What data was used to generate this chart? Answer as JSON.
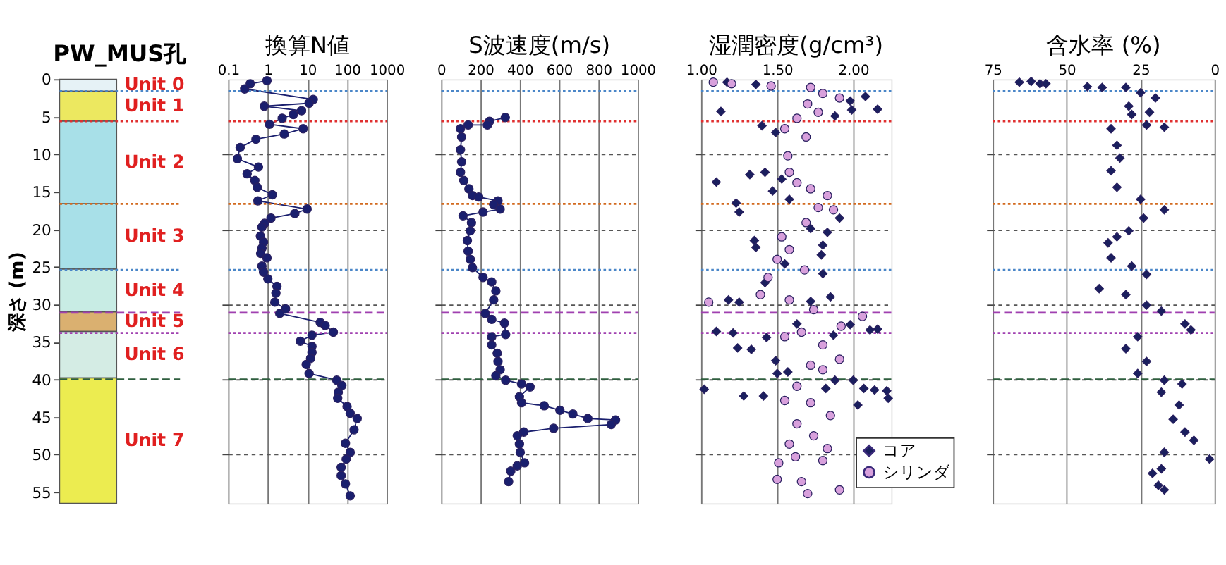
{
  "chart_data": [
    {
      "type": "bar",
      "stacked": true,
      "title": "PW_MUS孔",
      "ylabel": "深さ (m)",
      "ylim": [
        56.5,
        0
      ],
      "yticks": [
        0,
        5,
        10,
        15,
        20,
        25,
        30,
        35,
        40,
        45,
        50,
        55
      ],
      "tick_labels": "y",
      "categories": [
        null
      ],
      "series": [
        {
          "name": "Unit 0",
          "color": "#e6f2f6",
          "values": [
            1.6
          ]
        },
        {
          "name": "Unit 1",
          "color": "#ece860",
          "values": [
            4.0
          ]
        },
        {
          "name": "Unit 2",
          "color": "#a8e0e8",
          "values": [
            11.0
          ]
        },
        {
          "name": "Unit 3",
          "color": "#a8e0e8",
          "values": [
            8.7
          ]
        },
        {
          "name": "Unit 4",
          "color": "#c8ece4",
          "values": [
            5.7
          ]
        },
        {
          "name": "Unit 5",
          "color": "#dab070",
          "values": [
            2.6
          ]
        },
        {
          "name": "Unit 6",
          "color": "#d4ece4",
          "values": [
            6.2
          ]
        },
        {
          "name": "Unit 7",
          "color": "#ecec50",
          "values": [
            16.7
          ]
        }
      ],
      "ref_lines": [
        {
          "axis": "y",
          "value": 1.6,
          "color": "#4a86c8",
          "line_style": "dotted"
        },
        {
          "axis": "y",
          "value": 5.6,
          "color": "#e03030",
          "line_style": "dotted"
        },
        {
          "axis": "y",
          "value": 16.6,
          "color": "#d2691e",
          "line_style": "dotted"
        },
        {
          "axis": "y",
          "value": 25.4,
          "color": "#4a86c8",
          "line_style": "dotted"
        },
        {
          "axis": "y",
          "value": 31.1,
          "color": "#a040b0",
          "line_style": "dashed"
        },
        {
          "axis": "y",
          "value": 33.8,
          "color": "#a040b0",
          "line_style": "dotted"
        },
        {
          "axis": "y",
          "value": 40.0,
          "color": "#2e5e3e",
          "line_style": "dashed"
        }
      ]
    },
    {
      "type": "line",
      "title": "換算N値",
      "log": "x",
      "xlim": [
        0.1,
        1000
      ],
      "xticks": [
        0.1,
        1,
        10,
        100,
        1000
      ],
      "ylim": [
        56.5,
        0
      ],
      "yticks": [
        10,
        20,
        30,
        40,
        50
      ],
      "tick_labels": "x",
      "grid": true,
      "marker": "circle",
      "line_style": "solid",
      "series": [
        {
          "color": "#1a1f6e",
          "x": [
            0.95,
            0.36,
            0.26,
            14,
            11,
            0.81,
            7.1,
            4.4,
            2.3,
            1.1,
            7.8,
            2.6,
            0.5,
            0.2,
            0.17,
            0.58,
            0.3,
            0.47,
            0.54,
            1.3,
            0.56,
            9.8,
            4.8,
            1.2,
            0.83,
            0.71,
            0.65,
            0.78,
            0.71,
            0.66,
            0.95,
            0.71,
            0.78,
            1.0,
            1.7,
            1.6,
            1.5,
            2.8,
            2.0,
            21,
            28,
            45,
            13,
            6.6,
            13,
            13,
            12,
            9.3,
            11,
            55,
            74,
            60,
            58,
            100,
            120,
            180,
            150,
            91,
            120,
            95,
            71,
            71,
            91,
            120
          ],
          "values": [
            0.2,
            0.6,
            1.3,
            2.7,
            3.2,
            3.6,
            4.2,
            4.7,
            5.2,
            6.0,
            6.6,
            7.3,
            8.0,
            9.1,
            10.6,
            11.7,
            12.6,
            13.5,
            14.4,
            15.4,
            16.2,
            17.3,
            17.9,
            18.5,
            19.2,
            19.7,
            20.9,
            21.7,
            22.5,
            23.2,
            23.8,
            24.9,
            25.7,
            26.6,
            27.6,
            28.5,
            29.7,
            30.6,
            31.2,
            32.4,
            32.8,
            33.7,
            34.1,
            34.9,
            35.6,
            36.4,
            37.2,
            38.0,
            39.2,
            40.1,
            40.8,
            41.7,
            42.5,
            43.6,
            44.5,
            45.2,
            46.7,
            48.5,
            49.7,
            50.6,
            51.7,
            52.8,
            53.9,
            55.5
          ]
        }
      ],
      "ref_lines": [
        {
          "axis": "y",
          "value": 1.6,
          "color": "#4a86c8",
          "line_style": "dotted"
        },
        {
          "axis": "y",
          "value": 5.6,
          "color": "#e03030",
          "line_style": "dotted"
        },
        {
          "axis": "y",
          "value": 16.6,
          "color": "#d2691e",
          "line_style": "dotted"
        },
        {
          "axis": "y",
          "value": 25.4,
          "color": "#4a86c8",
          "line_style": "dotted"
        },
        {
          "axis": "y",
          "value": 31.1,
          "color": "#a040b0",
          "line_style": "dashed"
        },
        {
          "axis": "y",
          "value": 33.8,
          "color": "#a040b0",
          "line_style": "dotted"
        },
        {
          "axis": "y",
          "value": 40.0,
          "color": "#2e5e3e",
          "line_style": "dashed"
        }
      ]
    },
    {
      "type": "line",
      "title": "S波速度(m/s)",
      "xlim": [
        0,
        1000
      ],
      "xticks": [
        0,
        200,
        400,
        600,
        800,
        1000
      ],
      "ylim": [
        56.5,
        0
      ],
      "yticks": [
        10,
        20,
        30,
        40,
        50
      ],
      "tick_labels": "x",
      "grid": true,
      "marker": "circle",
      "line_style": "solid",
      "series": [
        {
          "color": "#1a1f6e",
          "x": [
            326,
            246,
            235,
            137,
            98,
            104,
            98,
            104,
            98,
            115,
            141,
            159,
            191,
            289,
            267,
            300,
            213,
            111,
            154,
            148,
            133,
            137,
            148,
            159,
            213,
            257,
            278,
            267,
            224,
            257,
            322,
            328,
            257,
            257,
            285,
            289,
            300,
            278,
            328,
            409,
            452,
            398,
            409,
            524,
            604,
            670,
            746,
            887,
            865,
            572,
            420,
            387,
            398,
            402,
            424,
            387,
            354,
            343
          ],
          "values": [
            5.1,
            5.6,
            6.1,
            6.1,
            6.6,
            7.7,
            9.4,
            11.0,
            12.4,
            13.5,
            14.6,
            15.5,
            15.7,
            16.2,
            16.7,
            17.3,
            17.7,
            18.2,
            19.1,
            20.2,
            21.5,
            22.9,
            24.0,
            25.1,
            26.4,
            27.0,
            28.2,
            29.4,
            31.2,
            32.0,
            32.5,
            34.0,
            34.3,
            35.4,
            36.5,
            37.6,
            38.7,
            39.5,
            40.1,
            40.6,
            41.0,
            42.3,
            43.1,
            43.5,
            44.1,
            44.6,
            45.2,
            45.4,
            46.0,
            46.5,
            47.0,
            47.5,
            48.6,
            49.7,
            51.1,
            51.5,
            52.2,
            53.6
          ]
        }
      ],
      "ref_lines": [
        {
          "axis": "y",
          "value": 1.6,
          "color": "#4a86c8",
          "line_style": "dotted"
        },
        {
          "axis": "y",
          "value": 5.6,
          "color": "#e03030",
          "line_style": "dotted"
        },
        {
          "axis": "y",
          "value": 16.6,
          "color": "#d2691e",
          "line_style": "dotted"
        },
        {
          "axis": "y",
          "value": 25.4,
          "color": "#4a86c8",
          "line_style": "dotted"
        },
        {
          "axis": "y",
          "value": 31.1,
          "color": "#a040b0",
          "line_style": "dashed"
        },
        {
          "axis": "y",
          "value": 33.8,
          "color": "#a040b0",
          "line_style": "dotted"
        },
        {
          "axis": "y",
          "value": 40.0,
          "color": "#2e5e3e",
          "line_style": "dashed"
        }
      ]
    },
    {
      "type": "scatter",
      "title": "湿潤密度(g/cm³)",
      "xlim": [
        1.0,
        2.25
      ],
      "xticks": [
        {
          "value": 1.0,
          "label": "1.00"
        },
        {
          "value": 1.5,
          "label": "1.50"
        },
        {
          "value": 2.0,
          "label": "2.00"
        }
      ],
      "ylim": [
        56.5,
        0
      ],
      "yticks": [
        10,
        20,
        30,
        40,
        50
      ],
      "tick_labels": "x",
      "grid": true,
      "legend": "bottom right",
      "series": [
        {
          "name": "コア",
          "color": "#1a1f5e",
          "marker": "diamond",
          "x": [
            1.17,
            1.36,
            1.13,
            1.4,
            1.49,
            1.98,
            2.08,
            2.16,
            1.99,
            1.88,
            1.1,
            1.32,
            1.42,
            1.53,
            1.47,
            1.23,
            1.25,
            1.58,
            1.91,
            1.35,
            1.36,
            1.8,
            1.79,
            1.55,
            1.8,
            1.42,
            1.18,
            1.25,
            1.85,
            1.72,
            1.1,
            1.21,
            1.43,
            1.98,
            2.11,
            2.16,
            1.87,
            1.24,
            1.33,
            1.49,
            1.57,
            1.5,
            2.0,
            2.07,
            2.14,
            2.22,
            2.23,
            2.03,
            1.02,
            1.28,
            1.41,
            1.82,
            1.88,
            1.63,
            1.72,
            1.83
          ],
          "values": [
            0.4,
            0.7,
            4.3,
            6.2,
            7.1,
            2.9,
            2.3,
            4.0,
            4.1,
            4.9,
            13.7,
            12.7,
            12.4,
            13.3,
            14.9,
            16.5,
            17.7,
            16.0,
            18.5,
            21.5,
            22.4,
            22.1,
            23.4,
            24.6,
            25.9,
            27.1,
            29.4,
            29.7,
            29.0,
            29.6,
            33.6,
            33.8,
            34.4,
            32.7,
            33.4,
            33.3,
            34.1,
            35.8,
            36.0,
            37.5,
            39.0,
            39.2,
            40.1,
            41.2,
            41.4,
            41.5,
            42.5,
            43.4,
            41.3,
            42.2,
            42.2,
            41.2,
            40.1,
            32.6,
            19.9,
            20.4
          ]
        },
        {
          "name": "シリンダ",
          "color": "#d8a0dc",
          "marker": "circle",
          "x": [
            1.08,
            1.2,
            1.46,
            1.72,
            1.8,
            1.91,
            1.7,
            1.77,
            1.63,
            1.55,
            1.69,
            1.57,
            1.58,
            1.63,
            1.72,
            1.83,
            1.77,
            1.87,
            1.69,
            1.53,
            1.58,
            1.5,
            1.68,
            1.44,
            1.39,
            1.05,
            1.58,
            1.74,
            2.06,
            1.92,
            1.66,
            1.55,
            1.8,
            1.91,
            1.72,
            1.8,
            1.63,
            1.55,
            1.72,
            1.85,
            1.63,
            1.74,
            1.58,
            1.83,
            1.62,
            1.8,
            1.5,
            1.66,
            1.91,
            1.7,
            1.51
          ],
          "values": [
            0.4,
            0.6,
            0.9,
            1.1,
            1.9,
            2.5,
            3.3,
            4.4,
            5.2,
            6.6,
            7.7,
            10.2,
            12.4,
            13.8,
            14.6,
            15.5,
            17.1,
            17.4,
            19.1,
            21.0,
            22.7,
            24.0,
            25.4,
            26.4,
            28.7,
            29.7,
            29.4,
            30.7,
            31.6,
            32.9,
            33.7,
            34.3,
            35.4,
            37.3,
            38.1,
            38.7,
            40.9,
            42.8,
            43.1,
            44.8,
            45.9,
            47.5,
            48.6,
            49.2,
            50.3,
            50.8,
            53.3,
            53.6,
            54.7,
            55.2,
            51.1
          ]
        }
      ],
      "ref_lines": [
        {
          "axis": "y",
          "value": 1.6,
          "color": "#4a86c8",
          "line_style": "dotted"
        },
        {
          "axis": "y",
          "value": 5.6,
          "color": "#e03030",
          "line_style": "dotted"
        },
        {
          "axis": "y",
          "value": 16.6,
          "color": "#d2691e",
          "line_style": "dotted"
        },
        {
          "axis": "y",
          "value": 25.4,
          "color": "#4a86c8",
          "line_style": "dotted"
        },
        {
          "axis": "y",
          "value": 31.1,
          "color": "#a040b0",
          "line_style": "dashed"
        },
        {
          "axis": "y",
          "value": 33.8,
          "color": "#a040b0",
          "line_style": "dotted"
        },
        {
          "axis": "y",
          "value": 40.0,
          "color": "#2e5e3e",
          "line_style": "dashed"
        }
      ]
    },
    {
      "type": "scatter",
      "title": "含水率 (%)",
      "xlim": [
        75,
        0
      ],
      "xticks": [
        75,
        50,
        25,
        0
      ],
      "ylim": [
        56.5,
        0
      ],
      "yticks": [
        10,
        20,
        30,
        40,
        50
      ],
      "tick_labels": "x",
      "grid": true,
      "marker": "diamond",
      "series": [
        {
          "color": "#1a1f5e",
          "x": [
            66,
            62,
            59,
            57,
            43,
            38,
            30,
            25,
            20,
            29,
            22,
            17,
            35,
            33,
            35,
            33,
            25,
            17,
            24,
            29,
            36,
            35,
            23,
            39,
            30,
            23,
            18,
            10,
            8,
            26,
            30,
            23,
            26,
            17,
            11,
            18,
            12,
            14,
            10,
            7,
            17,
            1.7,
            18,
            21,
            19,
            17,
            28,
            23,
            32,
            33,
            28
          ],
          "values": [
            0.4,
            0.3,
            0.6,
            0.6,
            1.0,
            1.1,
            1.1,
            1.8,
            2.5,
            3.6,
            4.4,
            6.4,
            6.6,
            8.8,
            12.2,
            14.4,
            16.0,
            17.4,
            18.5,
            20.2,
            21.8,
            23.8,
            26.0,
            27.9,
            28.7,
            30.1,
            30.9,
            32.6,
            33.4,
            34.3,
            35.9,
            37.6,
            39.2,
            40.1,
            40.6,
            41.7,
            43.4,
            45.3,
            47.0,
            48.1,
            49.7,
            50.6,
            51.9,
            52.5,
            54.1,
            54.7,
            4.7,
            6.1,
            10.5,
            21.0,
            24.9
          ]
        }
      ],
      "ref_lines": [
        {
          "axis": "y",
          "value": 1.6,
          "color": "#4a86c8",
          "line_style": "dotted"
        },
        {
          "axis": "y",
          "value": 5.6,
          "color": "#e03030",
          "line_style": "dotted"
        },
        {
          "axis": "y",
          "value": 16.6,
          "color": "#d2691e",
          "line_style": "dotted"
        },
        {
          "axis": "y",
          "value": 25.4,
          "color": "#4a86c8",
          "line_style": "dotted"
        },
        {
          "axis": "y",
          "value": 31.1,
          "color": "#a040b0",
          "line_style": "dashed"
        },
        {
          "axis": "y",
          "value": 33.8,
          "color": "#a040b0",
          "line_style": "dotted"
        },
        {
          "axis": "y",
          "value": 40.0,
          "color": "#2e5e3e",
          "line_style": "dashed"
        }
      ]
    }
  ]
}
